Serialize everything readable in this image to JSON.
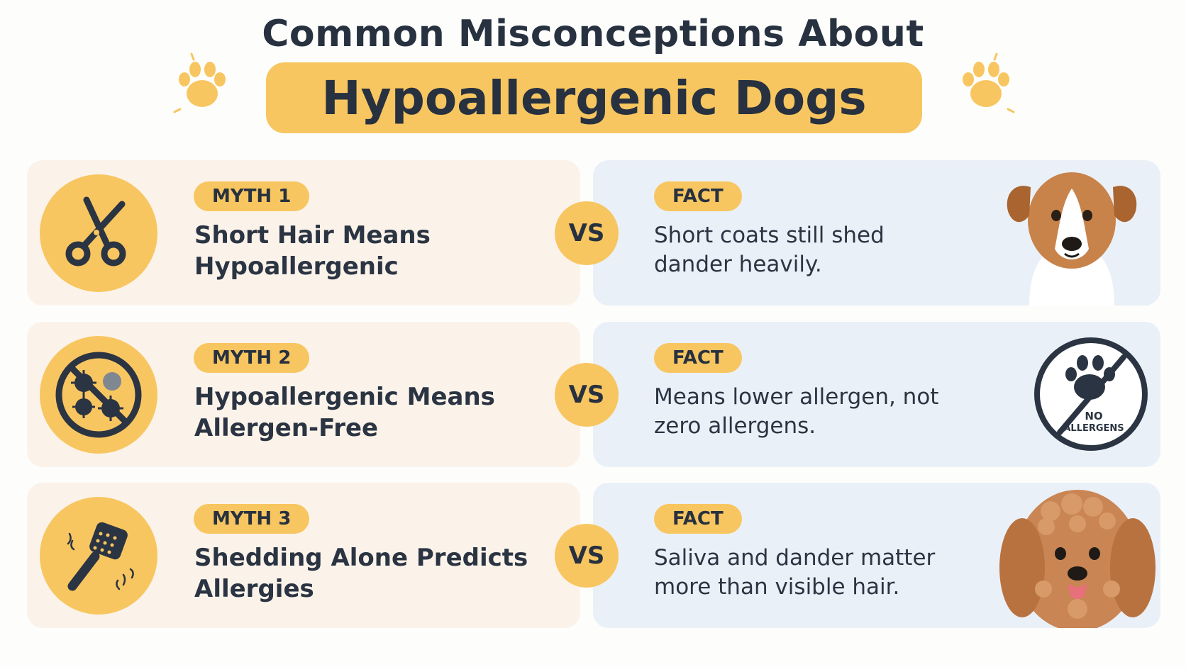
{
  "header": {
    "title_top": "Common Misconceptions About",
    "title_main": "Hypoallergenic Dogs"
  },
  "colors": {
    "accent": "#f8c660",
    "text": "#27313f",
    "myth_bg": "#fbf3ea",
    "fact_bg": "#eaf0f7"
  },
  "rows": [
    {
      "myth_label": "MYTH 1",
      "myth_title": "Short Hair Means Hypoallergenic",
      "myth_icon": "scissors-icon",
      "vs": "VS",
      "fact_label": "FACT",
      "fact_text": "Short coats still shed dander heavily.",
      "fact_image": "short-haired-dog"
    },
    {
      "myth_label": "MYTH 2",
      "myth_title": "Hypoallergenic Means Allergen-Free",
      "myth_icon": "no-allergens-icon",
      "vs": "VS",
      "fact_label": "FACT",
      "fact_text": "Means lower allergen, not zero allergens.",
      "fact_image": "no-allergens-paw-sign",
      "fact_sign_line1": "NO",
      "fact_sign_line2": "ALLERGENS"
    },
    {
      "myth_label": "MYTH 3",
      "myth_title": "Shedding Alone Predicts Allergies",
      "myth_icon": "grooming-brush-icon",
      "vs": "VS",
      "fact_label": "FACT",
      "fact_text": "Saliva and dander matter more than visible hair.",
      "fact_image": "curly-haired-dog"
    }
  ]
}
